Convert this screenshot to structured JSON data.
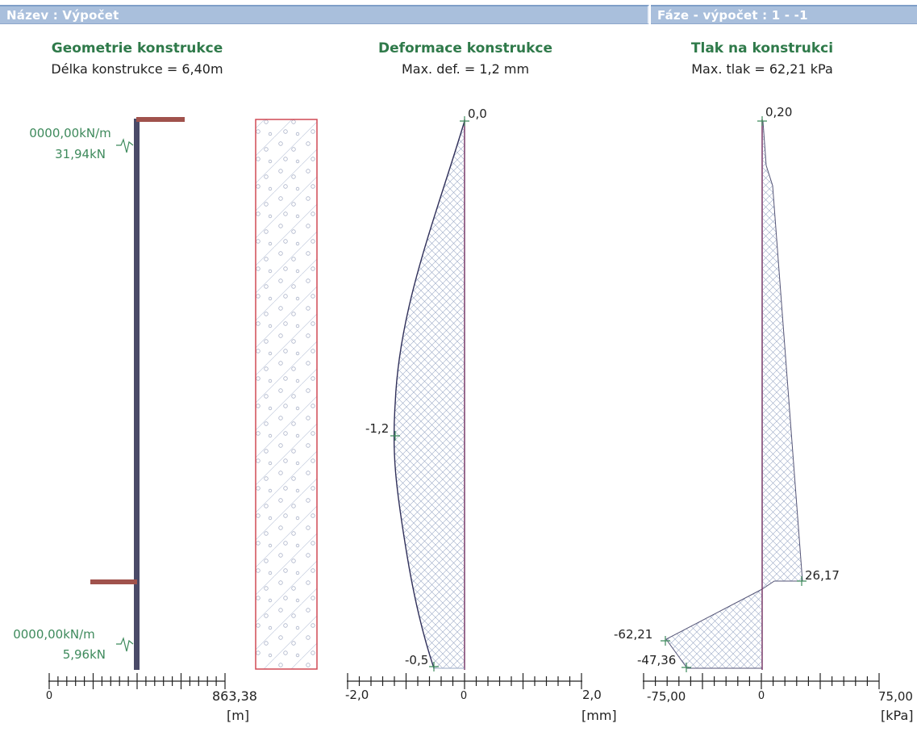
{
  "header": {
    "name_label": "Název : Výpočet",
    "phase_label": "Fáze - výpočet : 1 - -1"
  },
  "geometry": {
    "title": "Geometrie konstrukce",
    "subtitle": "Délka konstrukce = 6,40m",
    "anchor_top_stiffness": "0000,00kN/m",
    "anchor_top_force": "31,94kN",
    "anchor_bottom_stiffness": "0000,00kN/m",
    "anchor_bottom_force": "5,96kN",
    "axis_start": "0",
    "axis_end": "863,38",
    "axis_unit": "[m]"
  },
  "deformation": {
    "title": "Deformace konstrukce",
    "subtitle": "Max. def. = 1,2 mm",
    "label_top": "0,0",
    "label_max": "-1,2",
    "label_bottom": "-0,5",
    "axis_min": "-2,0",
    "axis_zero": "0",
    "axis_max": "2,0",
    "axis_unit": "[mm]",
    "chart_data": {
      "type": "area",
      "x_unit": "mm",
      "xlim": [
        -2.0,
        2.0
      ],
      "profile": [
        0.0,
        -0.45,
        -0.8,
        -1.05,
        -1.2,
        -1.15,
        -0.95,
        -0.5
      ]
    }
  },
  "pressure": {
    "title": "Tlak na konstrukci",
    "subtitle": "Max. tlak = 62,21 kPa",
    "label_top": "0,20",
    "label_right": "26,17",
    "label_left_max": "-62,21",
    "label_left_bottom": "-47,36",
    "axis_min": "-75,00",
    "axis_zero": "0",
    "axis_max": "75,00",
    "axis_unit": "[kPa]",
    "chart_data": {
      "type": "area",
      "x_unit": "kPa",
      "xlim": [
        -75.0,
        75.0
      ],
      "marked_values": [
        0.2,
        26.17,
        -62.21,
        -47.36
      ]
    }
  }
}
